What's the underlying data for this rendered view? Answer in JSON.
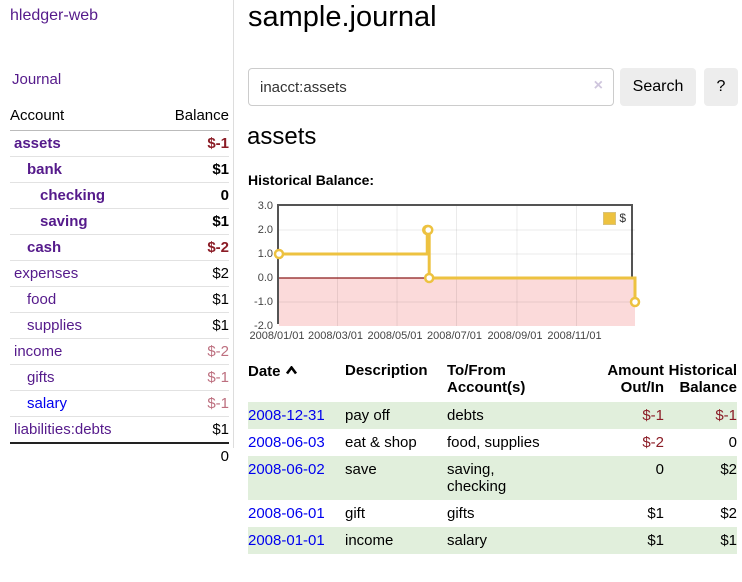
{
  "app": {
    "title": "hledger-web"
  },
  "sidebar": {
    "journal_label": "Journal",
    "accounts_table": {
      "header_account": "Account",
      "header_balance": "Balance",
      "rows": [
        {
          "name": "assets",
          "balance": "$-1"
        },
        {
          "name": "bank",
          "balance": "$1"
        },
        {
          "name": "checking",
          "balance": "0"
        },
        {
          "name": "saving",
          "balance": "$1"
        },
        {
          "name": "cash",
          "balance": "$-2"
        },
        {
          "name": "expenses",
          "balance": "$2"
        },
        {
          "name": "food",
          "balance": "$1"
        },
        {
          "name": "supplies",
          "balance": "$1"
        },
        {
          "name": "income",
          "balance": "$-2"
        },
        {
          "name": "gifts",
          "balance": "$-1"
        },
        {
          "name": "salary",
          "balance": "$-1"
        },
        {
          "name": "liabilities:debts",
          "balance": "$1"
        }
      ],
      "total": "0"
    }
  },
  "main": {
    "title": "sample.journal",
    "search": {
      "value": "inacct:assets",
      "clear_icon": "×",
      "button_label": "Search",
      "help_label": "?"
    },
    "account_heading": "assets",
    "chart_label": "Historical Balance:"
  },
  "chart_data": {
    "type": "line",
    "title": "Historical Balance",
    "step": true,
    "series": [
      {
        "name": "$",
        "color": "#edc240",
        "x": [
          "2008-01-01",
          "2008-06-01",
          "2008-06-02",
          "2008-06-03",
          "2008-12-31"
        ],
        "values": [
          1,
          2,
          2,
          0,
          -1
        ]
      }
    ],
    "x_range": [
      "2008-01-01",
      "2008-12-31"
    ],
    "ylim": [
      -2,
      3
    ],
    "yticks": [
      "3.0",
      "2.0",
      "1.0",
      "0.0",
      "-1.0",
      "-2.0"
    ],
    "ygrid": [
      2,
      1,
      -1
    ],
    "xticks": [
      "2008/01/01",
      "2008/03/01",
      "2008/05/01",
      "2008/07/01",
      "2008/09/01",
      "2008/11/01"
    ],
    "legend_position": "top-right",
    "grid": true,
    "negative_region_color": "#fbdada",
    "zero_line_color": "#8b1a1a"
  },
  "table": {
    "headers": {
      "date": "Date",
      "description": "Description",
      "accounts": "To/From Account(s)",
      "amount": "Amount Out/In",
      "balance": "Historical Balance"
    },
    "rows": [
      {
        "date": "2008-12-31",
        "description": "pay off",
        "accounts": "debts",
        "amount": "$-1",
        "balance": "$-1"
      },
      {
        "date": "2008-06-03",
        "description": "eat & shop",
        "accounts": "food, supplies",
        "amount": "$-2",
        "balance": "0"
      },
      {
        "date": "2008-06-02",
        "description": "save",
        "accounts": "saving, checking",
        "amount": "0",
        "balance": "$2"
      },
      {
        "date": "2008-06-01",
        "description": "gift",
        "accounts": "gifts",
        "amount": "$1",
        "balance": "$2"
      },
      {
        "date": "2008-01-01",
        "description": "income",
        "accounts": "salary",
        "amount": "$1",
        "balance": "$1"
      }
    ]
  }
}
